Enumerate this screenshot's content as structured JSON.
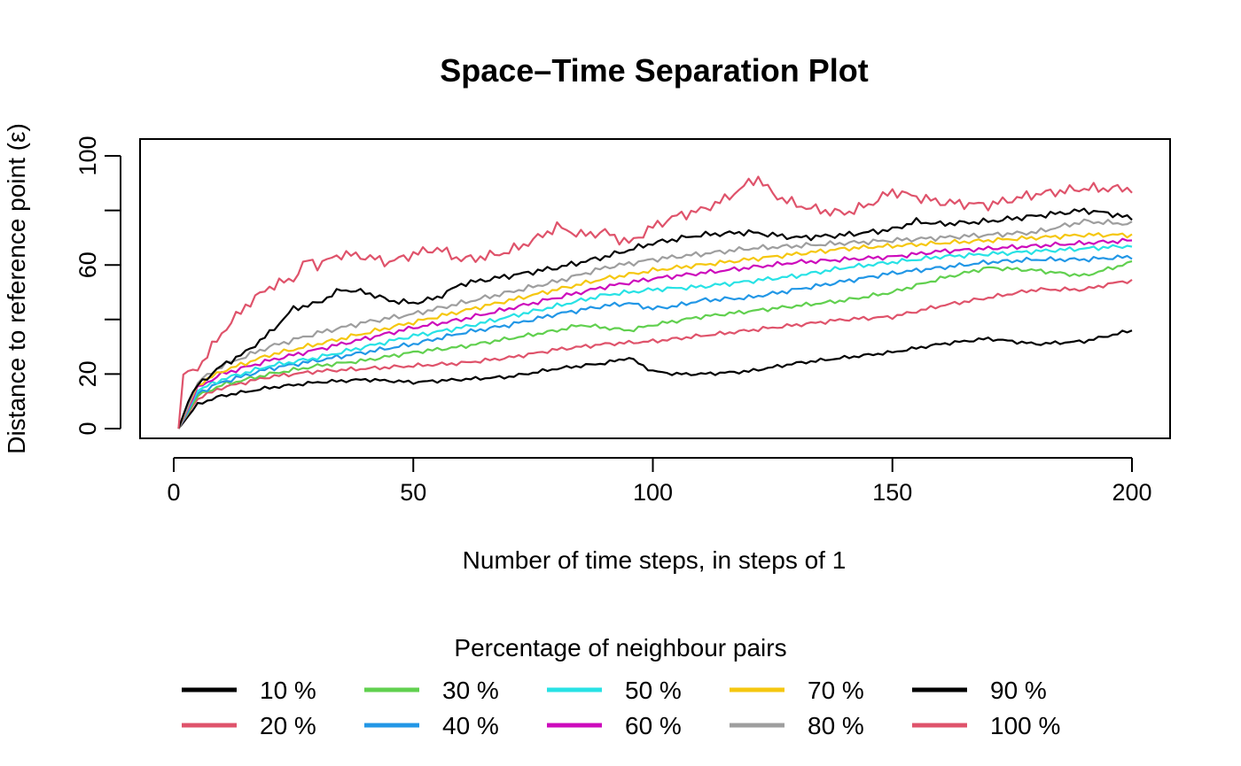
{
  "chart_data": {
    "type": "line",
    "title": "Space–Time Separation Plot",
    "xlabel": "Number of time steps, in steps of  1",
    "ylabel": "Distance to reference point (ε)",
    "xlim": [
      0,
      200
    ],
    "ylim": [
      0,
      100
    ],
    "x_ticks": [
      "0",
      "50",
      "100",
      "150",
      "200"
    ],
    "y_ticks": [
      "0",
      "20",
      "60",
      "100"
    ],
    "legend_title": "Percentage of neighbour pairs",
    "legend_position": "bottom",
    "series": [
      {
        "name": "10 %",
        "color": "#000000",
        "wiggle": 0.6,
        "phase": 1.0,
        "points": [
          [
            1,
            0
          ],
          [
            5,
            9
          ],
          [
            10,
            12
          ],
          [
            20,
            15
          ],
          [
            30,
            17
          ],
          [
            40,
            18
          ],
          [
            50,
            17
          ],
          [
            60,
            18
          ],
          [
            70,
            19
          ],
          [
            80,
            22
          ],
          [
            90,
            24
          ],
          [
            95,
            26
          ],
          [
            100,
            21
          ],
          [
            105,
            20
          ],
          [
            110,
            20
          ],
          [
            120,
            21
          ],
          [
            130,
            24
          ],
          [
            140,
            26
          ],
          [
            150,
            28
          ],
          [
            160,
            31
          ],
          [
            170,
            33
          ],
          [
            180,
            31
          ],
          [
            190,
            32
          ],
          [
            200,
            36
          ]
        ]
      },
      {
        "name": "20 %",
        "color": "#DF536B",
        "wiggle": 0.7,
        "phase": 2.1,
        "points": [
          [
            1,
            0
          ],
          [
            5,
            11
          ],
          [
            10,
            15
          ],
          [
            20,
            19
          ],
          [
            30,
            21
          ],
          [
            40,
            22
          ],
          [
            50,
            23
          ],
          [
            60,
            24
          ],
          [
            70,
            26
          ],
          [
            80,
            29
          ],
          [
            90,
            31
          ],
          [
            100,
            32
          ],
          [
            110,
            34
          ],
          [
            120,
            36
          ],
          [
            130,
            38
          ],
          [
            140,
            40
          ],
          [
            150,
            41
          ],
          [
            160,
            45
          ],
          [
            170,
            48
          ],
          [
            180,
            51
          ],
          [
            190,
            51
          ],
          [
            198,
            54
          ],
          [
            200,
            54
          ]
        ]
      },
      {
        "name": "30 %",
        "color": "#61D04F",
        "wiggle": 0.7,
        "phase": 3.2,
        "points": [
          [
            1,
            0
          ],
          [
            5,
            12
          ],
          [
            10,
            16
          ],
          [
            20,
            20
          ],
          [
            30,
            23
          ],
          [
            40,
            25
          ],
          [
            50,
            28
          ],
          [
            60,
            30
          ],
          [
            70,
            33
          ],
          [
            80,
            36
          ],
          [
            85,
            38
          ],
          [
            90,
            37
          ],
          [
            95,
            36
          ],
          [
            100,
            38
          ],
          [
            110,
            41
          ],
          [
            120,
            43
          ],
          [
            130,
            45
          ],
          [
            140,
            47
          ],
          [
            150,
            50
          ],
          [
            160,
            55
          ],
          [
            170,
            59
          ],
          [
            180,
            58
          ],
          [
            190,
            56
          ],
          [
            200,
            61
          ]
        ]
      },
      {
        "name": "40 %",
        "color": "#2297E6",
        "wiggle": 0.8,
        "phase": 4.3,
        "points": [
          [
            1,
            0
          ],
          [
            5,
            13
          ],
          [
            10,
            17
          ],
          [
            20,
            22
          ],
          [
            30,
            25
          ],
          [
            40,
            28
          ],
          [
            50,
            31
          ],
          [
            60,
            35
          ],
          [
            70,
            38
          ],
          [
            80,
            42
          ],
          [
            90,
            45
          ],
          [
            95,
            46
          ],
          [
            100,
            44
          ],
          [
            105,
            45
          ],
          [
            110,
            47
          ],
          [
            120,
            48
          ],
          [
            130,
            51
          ],
          [
            140,
            54
          ],
          [
            150,
            57
          ],
          [
            160,
            59
          ],
          [
            170,
            61
          ],
          [
            180,
            62
          ],
          [
            190,
            62
          ],
          [
            200,
            63
          ]
        ]
      },
      {
        "name": "50 %",
        "color": "#28E2E5",
        "wiggle": 0.8,
        "phase": 5.4,
        "points": [
          [
            1,
            0
          ],
          [
            5,
            14
          ],
          [
            10,
            18
          ],
          [
            20,
            23
          ],
          [
            30,
            26
          ],
          [
            40,
            30
          ],
          [
            50,
            34
          ],
          [
            60,
            37
          ],
          [
            70,
            41
          ],
          [
            80,
            45
          ],
          [
            90,
            49
          ],
          [
            100,
            51
          ],
          [
            110,
            52
          ],
          [
            120,
            54
          ],
          [
            130,
            56
          ],
          [
            140,
            59
          ],
          [
            150,
            61
          ],
          [
            160,
            63
          ],
          [
            170,
            64
          ],
          [
            180,
            65
          ],
          [
            190,
            66
          ],
          [
            200,
            67
          ]
        ]
      },
      {
        "name": "60 %",
        "color": "#CD0BBC",
        "wiggle": 0.8,
        "phase": 0.5,
        "points": [
          [
            1,
            0
          ],
          [
            5,
            15
          ],
          [
            10,
            20
          ],
          [
            20,
            25
          ],
          [
            30,
            29
          ],
          [
            40,
            33
          ],
          [
            50,
            37
          ],
          [
            60,
            40
          ],
          [
            70,
            44
          ],
          [
            80,
            48
          ],
          [
            90,
            52
          ],
          [
            100,
            55
          ],
          [
            110,
            57
          ],
          [
            120,
            59
          ],
          [
            130,
            61
          ],
          [
            140,
            62
          ],
          [
            150,
            63
          ],
          [
            160,
            65
          ],
          [
            170,
            66
          ],
          [
            180,
            67
          ],
          [
            190,
            68
          ],
          [
            200,
            69
          ]
        ]
      },
      {
        "name": "70 %",
        "color": "#F5C710",
        "wiggle": 0.8,
        "phase": 1.6,
        "points": [
          [
            1,
            0
          ],
          [
            5,
            16
          ],
          [
            10,
            21
          ],
          [
            20,
            27
          ],
          [
            30,
            31
          ],
          [
            40,
            35
          ],
          [
            50,
            39
          ],
          [
            60,
            43
          ],
          [
            70,
            47
          ],
          [
            80,
            51
          ],
          [
            90,
            55
          ],
          [
            100,
            58
          ],
          [
            110,
            60
          ],
          [
            120,
            62
          ],
          [
            130,
            64
          ],
          [
            140,
            66
          ],
          [
            150,
            67
          ],
          [
            160,
            68
          ],
          [
            170,
            69
          ],
          [
            180,
            70
          ],
          [
            190,
            71
          ],
          [
            200,
            71
          ]
        ]
      },
      {
        "name": "80 %",
        "color": "#9E9E9E",
        "wiggle": 0.9,
        "phase": 2.7,
        "points": [
          [
            1,
            0
          ],
          [
            5,
            17
          ],
          [
            10,
            23
          ],
          [
            20,
            30
          ],
          [
            30,
            35
          ],
          [
            40,
            39
          ],
          [
            50,
            42
          ],
          [
            60,
            46
          ],
          [
            70,
            50
          ],
          [
            80,
            54
          ],
          [
            90,
            59
          ],
          [
            100,
            62
          ],
          [
            110,
            64
          ],
          [
            120,
            66
          ],
          [
            130,
            67
          ],
          [
            140,
            68
          ],
          [
            150,
            69
          ],
          [
            160,
            70
          ],
          [
            170,
            71
          ],
          [
            180,
            72
          ],
          [
            190,
            76
          ],
          [
            200,
            75
          ]
        ]
      },
      {
        "name": "90 %",
        "color": "#000000",
        "wiggle": 1.0,
        "phase": 3.8,
        "points": [
          [
            1,
            0
          ],
          [
            3,
            10
          ],
          [
            5,
            16
          ],
          [
            10,
            23
          ],
          [
            15,
            28
          ],
          [
            20,
            35
          ],
          [
            25,
            44
          ],
          [
            30,
            46
          ],
          [
            35,
            51
          ],
          [
            40,
            50
          ],
          [
            45,
            47
          ],
          [
            50,
            46
          ],
          [
            55,
            48
          ],
          [
            60,
            53
          ],
          [
            70,
            56
          ],
          [
            80,
            59
          ],
          [
            90,
            63
          ],
          [
            100,
            68
          ],
          [
            110,
            71
          ],
          [
            120,
            72
          ],
          [
            125,
            71
          ],
          [
            130,
            70
          ],
          [
            140,
            71
          ],
          [
            150,
            73
          ],
          [
            155,
            76
          ],
          [
            160,
            75
          ],
          [
            170,
            76
          ],
          [
            180,
            78
          ],
          [
            190,
            80
          ],
          [
            195,
            79
          ],
          [
            200,
            77
          ]
        ]
      },
      {
        "name": "100 %",
        "color": "#DF536B",
        "wiggle": 1.8,
        "phase": 4.9,
        "points": [
          [
            1,
            0
          ],
          [
            2,
            20
          ],
          [
            5,
            22
          ],
          [
            10,
            35
          ],
          [
            15,
            45
          ],
          [
            20,
            52
          ],
          [
            25,
            55
          ],
          [
            28,
            62
          ],
          [
            30,
            60
          ],
          [
            35,
            64
          ],
          [
            40,
            63
          ],
          [
            45,
            61
          ],
          [
            50,
            64
          ],
          [
            55,
            66
          ],
          [
            60,
            62
          ],
          [
            65,
            63
          ],
          [
            70,
            65
          ],
          [
            75,
            69
          ],
          [
            80,
            74
          ],
          [
            85,
            71
          ],
          [
            90,
            72
          ],
          [
            95,
            68
          ],
          [
            100,
            74
          ],
          [
            105,
            78
          ],
          [
            110,
            80
          ],
          [
            115,
            84
          ],
          [
            120,
            90
          ],
          [
            122,
            92
          ],
          [
            125,
            86
          ],
          [
            130,
            82
          ],
          [
            135,
            80
          ],
          [
            140,
            79
          ],
          [
            145,
            82
          ],
          [
            150,
            87
          ],
          [
            155,
            85
          ],
          [
            160,
            83
          ],
          [
            170,
            82
          ],
          [
            180,
            86
          ],
          [
            190,
            88
          ],
          [
            200,
            88
          ]
        ]
      }
    ]
  }
}
